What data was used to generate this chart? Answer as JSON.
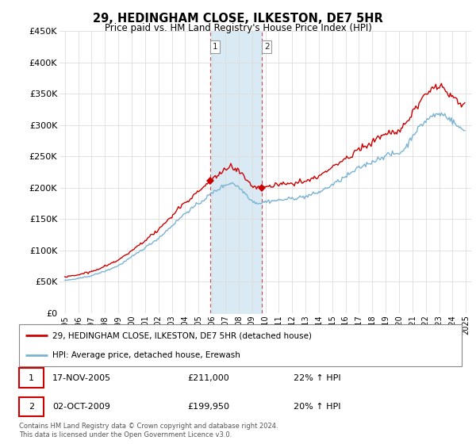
{
  "title": "29, HEDINGHAM CLOSE, ILKESTON, DE7 5HR",
  "subtitle": "Price paid vs. HM Land Registry's House Price Index (HPI)",
  "hpi_label": "HPI: Average price, detached house, Erewash",
  "property_label": "29, HEDINGHAM CLOSE, ILKESTON, DE7 5HR (detached house)",
  "transaction1_date": "17-NOV-2005",
  "transaction1_price": "£211,000",
  "transaction1_hpi": "22% ↑ HPI",
  "transaction2_date": "02-OCT-2009",
  "transaction2_price": "£199,950",
  "transaction2_hpi": "20% ↑ HPI",
  "footer": "Contains HM Land Registry data © Crown copyright and database right 2024.\nThis data is licensed under the Open Government Licence v3.0.",
  "hpi_color": "#7ab3d4",
  "property_color": "#cc0000",
  "shade_color": "#daeaf5",
  "transaction_box_color": "#cc0000",
  "ylim": [
    0,
    450000
  ],
  "yticks": [
    0,
    50000,
    100000,
    150000,
    200000,
    250000,
    300000,
    350000,
    400000,
    450000
  ],
  "transaction1_year": 2005.88,
  "transaction2_year": 2009.75,
  "prop_price_t1": 211000,
  "prop_price_t2": 199950
}
